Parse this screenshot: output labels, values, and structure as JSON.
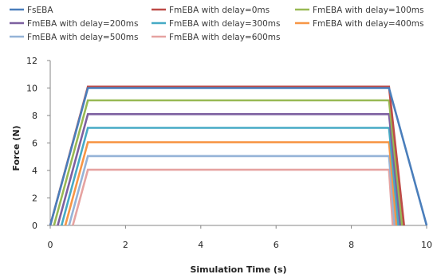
{
  "chart_data": {
    "type": "line",
    "title": "",
    "xlabel": "Simulation Time (s)",
    "ylabel": "Force (N)",
    "xlim": [
      0,
      10
    ],
    "ylim": [
      0,
      12
    ],
    "x_ticks": [
      0,
      2,
      4,
      6,
      8,
      10
    ],
    "y_ticks": [
      0,
      2,
      4,
      6,
      8,
      10,
      12
    ],
    "grid": false,
    "legend_position": "top",
    "series": [
      {
        "name": "FsEBA",
        "color": "#4a7ebb",
        "x": [
          0,
          1,
          9,
          10
        ],
        "y": [
          0,
          10,
          10,
          0
        ]
      },
      {
        "name": "FmEBA with delay=0ms",
        "color": "#be4b48",
        "x": [
          0,
          1,
          9,
          9.4
        ],
        "y": [
          0,
          10.1,
          10.1,
          0
        ]
      },
      {
        "name": "FmEBA with delay=100ms",
        "color": "#98b954",
        "x": [
          0.1,
          1,
          9,
          9.35
        ],
        "y": [
          0,
          9.1,
          9.1,
          0
        ]
      },
      {
        "name": "FmEBA with delay=200ms",
        "color": "#7d60a0",
        "x": [
          0.2,
          1,
          9,
          9.3
        ],
        "y": [
          0,
          8.1,
          8.1,
          0
        ]
      },
      {
        "name": "FmEBA with delay=300ms",
        "color": "#46aac5",
        "x": [
          0.3,
          1,
          9,
          9.25
        ],
        "y": [
          0,
          7.1,
          7.1,
          0
        ]
      },
      {
        "name": "FmEBA with delay=400ms",
        "color": "#f79646",
        "x": [
          0.4,
          1,
          9,
          9.2
        ],
        "y": [
          0,
          6.05,
          6.05,
          0
        ]
      },
      {
        "name": "FmEBA with delay=500ms",
        "color": "#95b3d7",
        "x": [
          0.5,
          1,
          9,
          9.15
        ],
        "y": [
          0,
          5.05,
          5.05,
          0
        ]
      },
      {
        "name": "FmEBA with delay=600ms",
        "color": "#e6a3a1",
        "x": [
          0.6,
          1,
          9,
          9.1
        ],
        "y": [
          0,
          4.05,
          4.05,
          0
        ]
      }
    ]
  }
}
